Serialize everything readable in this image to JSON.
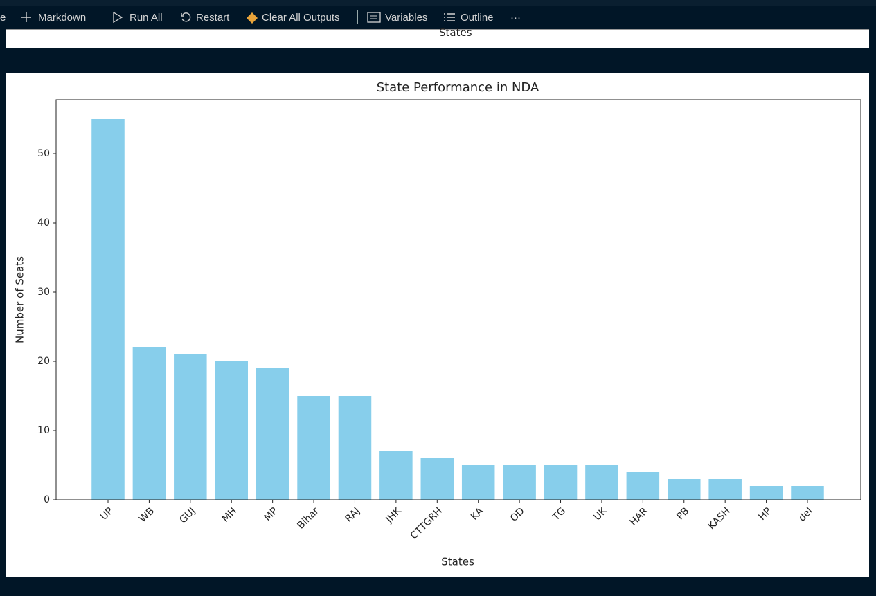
{
  "toolbar": {
    "cut_item": "e",
    "items": [
      "Markdown",
      "Run All",
      "Restart",
      "Clear All Outputs",
      "Variables",
      "Outline"
    ],
    "more": "···"
  },
  "previous_output": {
    "xlabel": "States"
  },
  "chart_data": {
    "type": "bar",
    "title": "State Performance in NDA",
    "xlabel": "States",
    "ylabel": "Number of Seats",
    "categories": [
      "UP",
      "WB",
      "GUJ",
      "MH",
      "MP",
      "Bihar",
      "RAJ",
      "JHK",
      "CTTGRH",
      "KA",
      "OD",
      "TG",
      "UK",
      "HAR",
      "PB",
      "KASH",
      "HP",
      "del"
    ],
    "values": [
      55,
      22,
      21,
      20,
      19,
      15,
      15,
      7,
      6,
      5,
      5,
      5,
      5,
      4,
      3,
      3,
      2,
      2
    ],
    "color": "#87ceeb",
    "ylim": [
      0,
      57.8
    ],
    "yticks": [
      0,
      10,
      20,
      30,
      40,
      50
    ],
    "grid": false
  }
}
